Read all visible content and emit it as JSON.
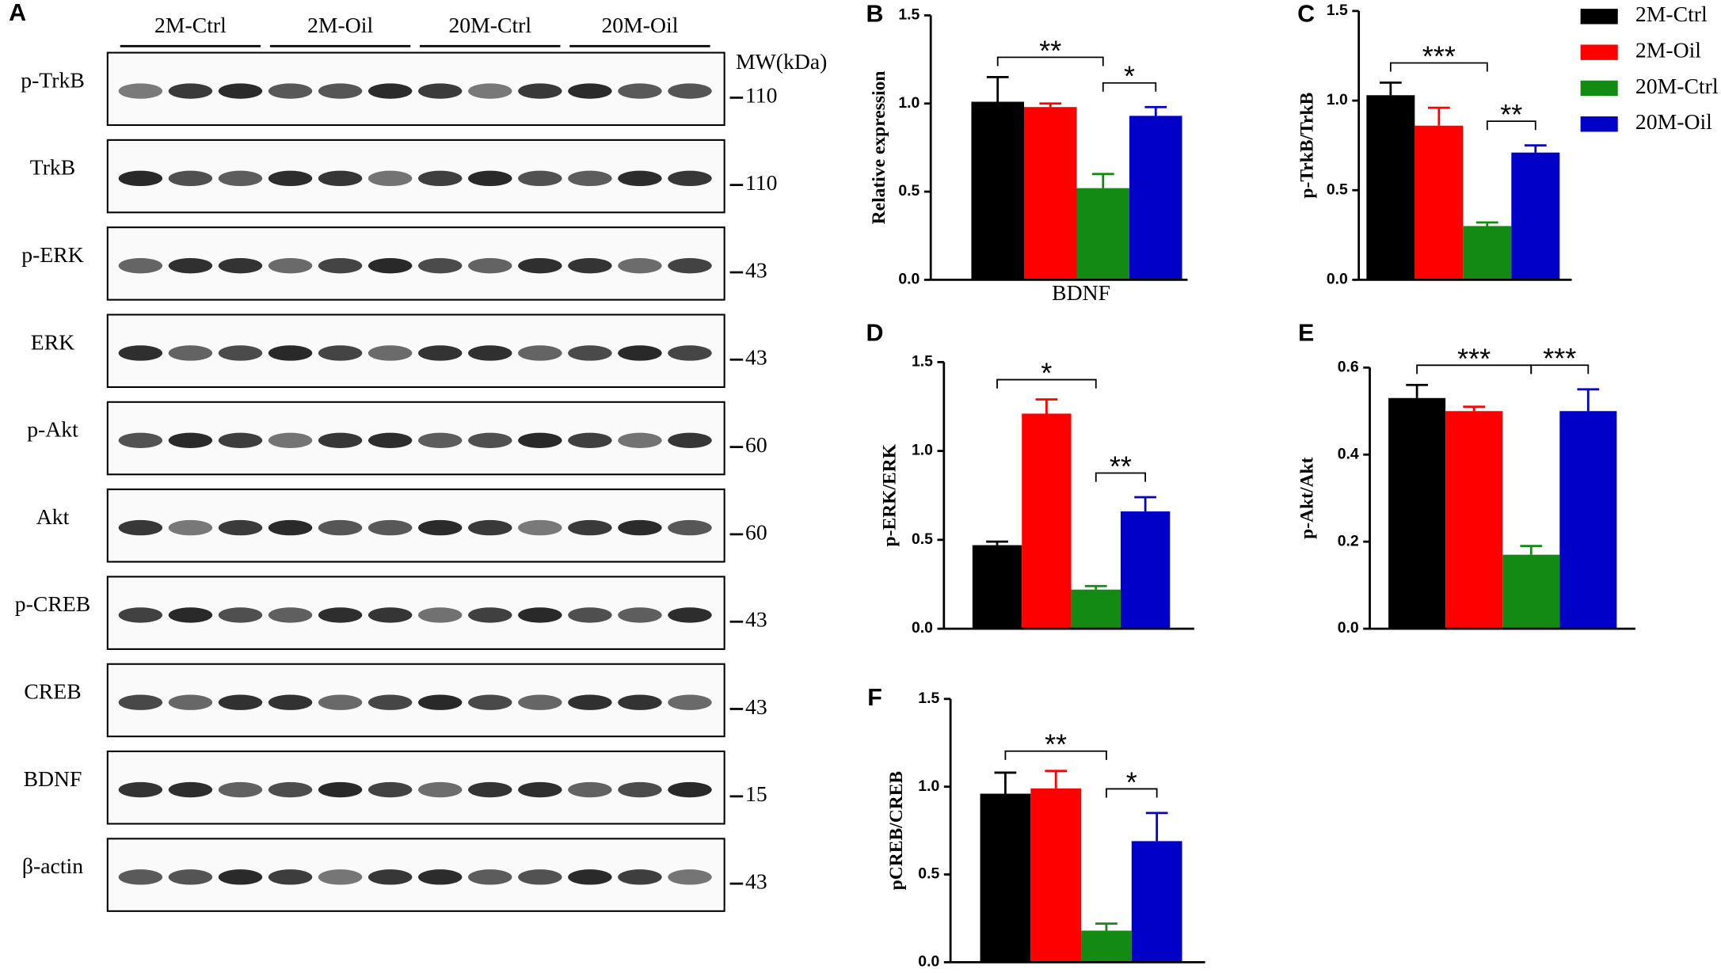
{
  "panel_a": {
    "label": "A",
    "groups": [
      "2M-Ctrl",
      "2M-Oil",
      "20M-Ctrl",
      "20M-Oil"
    ],
    "mw_title": "MW(kDa)",
    "proteins": [
      {
        "name": "p-TrkB",
        "mw": 110
      },
      {
        "name": "TrkB",
        "mw": 110
      },
      {
        "name": "p-ERK",
        "mw": 43
      },
      {
        "name": "ERK",
        "mw": 43
      },
      {
        "name": "p-Akt",
        "mw": 60
      },
      {
        "name": "Akt",
        "mw": 60
      },
      {
        "name": "p-CREB",
        "mw": 43
      },
      {
        "name": "CREB",
        "mw": 43
      },
      {
        "name": "BDNF",
        "mw": 15
      },
      {
        "name": "β-actin",
        "mw": 43
      }
    ]
  },
  "legend": {
    "names": [
      "2M-Ctrl",
      "2M-Oil",
      "20M-Ctrl",
      "20M-Oil"
    ],
    "colors": [
      "#000000",
      "#ff0000",
      "#138a13",
      "#0000c8"
    ]
  },
  "chart_data": [
    {
      "type": "bar",
      "panel": "B",
      "ylabel": "Relative expression",
      "xlabel": "BDNF",
      "ylim": [
        0,
        1.5
      ],
      "yticks": [
        {
          "value": 0,
          "label": "0.0"
        },
        {
          "value": 0.5,
          "label": "0.5"
        },
        {
          "value": 1,
          "label": "1.0"
        },
        {
          "value": 1.5,
          "label": "1.5"
        }
      ],
      "values": [
        1.01,
        0.98,
        0.52,
        0.93
      ],
      "errors": [
        0.14,
        0.02,
        0.08,
        0.05
      ],
      "annotations": [
        {
          "label": "**",
          "from": 0,
          "to": 2
        },
        {
          "label": "*",
          "from": 2,
          "to": 3
        }
      ]
    },
    {
      "type": "bar",
      "panel": "C",
      "ylabel": "p-TrkB/TrkB",
      "ylim": [
        0,
        1.5
      ],
      "yticks": [
        {
          "value": 0,
          "label": "0.0"
        },
        {
          "value": 0.5,
          "label": "0.5"
        },
        {
          "value": 1,
          "label": "1.0"
        },
        {
          "value": 1.5,
          "label": "1.5"
        }
      ],
      "values": [
        1.03,
        0.86,
        0.3,
        0.71
      ],
      "errors": [
        0.07,
        0.1,
        0.02,
        0.04
      ],
      "annotations": [
        {
          "label": "***",
          "from": 0,
          "to": 2
        },
        {
          "label": "**",
          "from": 2,
          "to": 3
        }
      ]
    },
    {
      "type": "bar",
      "panel": "D",
      "ylabel": "p-ERK/ERK",
      "ylim": [
        0,
        1.5
      ],
      "yticks": [
        {
          "value": 0,
          "label": "0.0"
        },
        {
          "value": 0.5,
          "label": "0.5"
        },
        {
          "value": 1,
          "label": "1.0"
        },
        {
          "value": 1.5,
          "label": "1.5"
        }
      ],
      "values": [
        0.47,
        1.21,
        0.22,
        0.66
      ],
      "errors": [
        0.02,
        0.08,
        0.02,
        0.08
      ],
      "annotations": [
        {
          "label": "*",
          "from": 0,
          "to": 2
        },
        {
          "label": "**",
          "from": 2,
          "to": 3
        }
      ]
    },
    {
      "type": "bar",
      "panel": "E",
      "ylabel": "p-Akt/Akt",
      "ylim": [
        0,
        0.6
      ],
      "yticks": [
        {
          "value": 0,
          "label": "0.0"
        },
        {
          "value": 0.2,
          "label": "0.2"
        },
        {
          "value": 0.4,
          "label": "0.4"
        },
        {
          "value": 0.6,
          "label": "0.6"
        }
      ],
      "values": [
        0.53,
        0.5,
        0.17,
        0.5
      ],
      "errors": [
        0.03,
        0.01,
        0.02,
        0.05
      ],
      "annotations": [
        {
          "label": "***",
          "from": 0,
          "to": 2
        },
        {
          "label": "***",
          "from": 2,
          "to": 3
        }
      ]
    },
    {
      "type": "bar",
      "panel": "F",
      "ylabel": "pCREB/CREB",
      "ylim": [
        0,
        1.5
      ],
      "yticks": [
        {
          "value": 0,
          "label": "0.0"
        },
        {
          "value": 0.5,
          "label": "0.5"
        },
        {
          "value": 1,
          "label": "1.0"
        },
        {
          "value": 1.5,
          "label": "1.5"
        }
      ],
      "values": [
        0.96,
        0.99,
        0.18,
        0.69
      ],
      "errors": [
        0.12,
        0.1,
        0.04,
        0.16
      ],
      "annotations": [
        {
          "label": "**",
          "from": 0,
          "to": 2
        },
        {
          "label": "*",
          "from": 2,
          "to": 3
        }
      ]
    }
  ]
}
